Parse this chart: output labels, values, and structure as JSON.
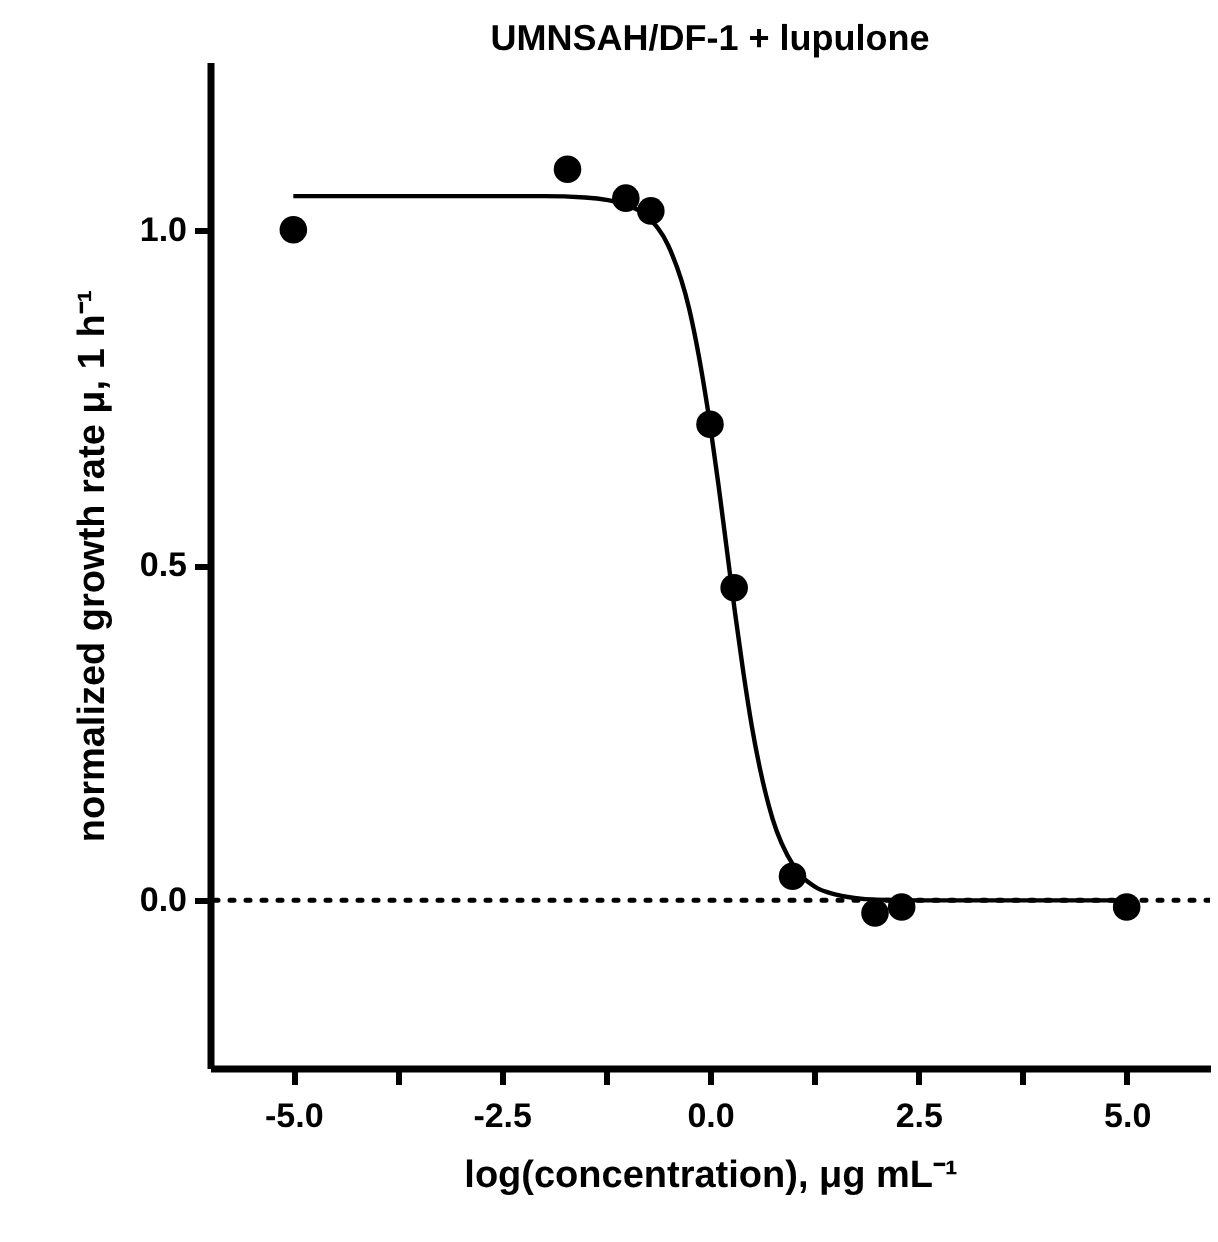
{
  "chart_data": {
    "type": "scatter",
    "title": "UMNSAH/DF-1 + lupulone",
    "xlabel": "log(concentration), μg mL⁻¹",
    "ylabel": "normalized growth rate μ, 1 h⁻¹",
    "xlim": [
      -6,
      6
    ],
    "ylim": [
      -0.25,
      1.25
    ],
    "xticks": [
      {
        "value": -5,
        "label": "-5.0"
      },
      {
        "value": -3.75,
        "label": null
      },
      {
        "value": -2.5,
        "label": "-2.5"
      },
      {
        "value": -1.25,
        "label": null
      },
      {
        "value": 0,
        "label": "0.0"
      },
      {
        "value": 1.25,
        "label": null
      },
      {
        "value": 2.5,
        "label": "2.5"
      },
      {
        "value": 3.75,
        "label": null
      },
      {
        "value": 5,
        "label": "5.0"
      }
    ],
    "yticks": [
      {
        "value": 0,
        "label": "0.0"
      },
      {
        "value": 0.5,
        "label": "0.5"
      },
      {
        "value": 1,
        "label": "1.0"
      }
    ],
    "grid": false,
    "series": [
      {
        "marker": "circle",
        "color": "#000000",
        "x": [
          -5,
          -1.71,
          -1.01,
          -0.71,
          0,
          0.29,
          0.99,
          1.98,
          2.3,
          5
        ],
        "values": [
          1.0,
          1.09,
          1.047,
          1.028,
          0.71,
          0.466,
          0.036,
          -0.019,
          -0.01,
          -0.01
        ]
      },
      {
        "type": "line",
        "marker": "none",
        "color": "#000000",
        "x": [
          -5,
          -2,
          -1.5,
          -1,
          -0.75,
          -0.5,
          -0.25,
          0,
          0.1,
          0.2,
          0.3,
          0.4,
          0.5,
          0.6,
          0.75,
          1,
          1.25,
          1.5,
          2,
          2.5,
          5
        ],
        "values": [
          1.05,
          1.05,
          1.048,
          1.037,
          1.019,
          0.976,
          0.882,
          0.71,
          0.621,
          0.525,
          0.429,
          0.34,
          0.261,
          0.196,
          0.122,
          0.052,
          0.021,
          0.009,
          0.001,
          0,
          0
        ]
      }
    ],
    "ref_lines": [
      {
        "axis": "y",
        "value": 0,
        "line_style": "dotted",
        "color": "#000000"
      }
    ]
  }
}
